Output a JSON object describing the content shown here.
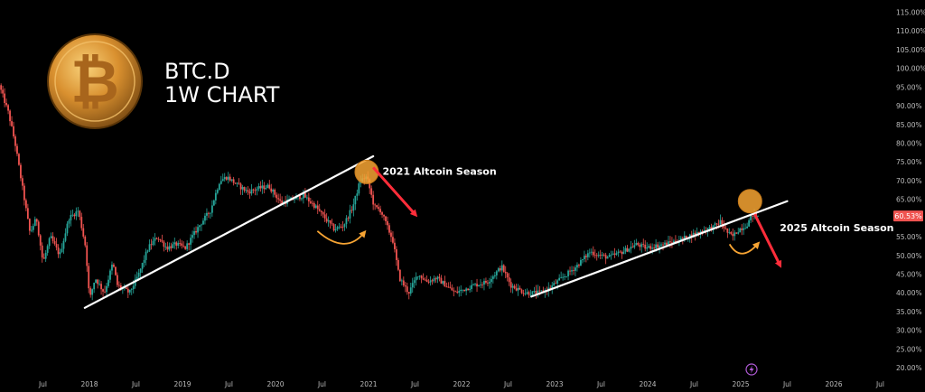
{
  "chart_data": {
    "type": "candlestick",
    "title_line1": "BTC.D",
    "title_line2": "1W CHART",
    "ylim": [
      20,
      115
    ],
    "y_ticks": [
      "115.00%",
      "110.00%",
      "105.00%",
      "100.00%",
      "95.00%",
      "90.00%",
      "85.00%",
      "80.00%",
      "75.00%",
      "70.00%",
      "65.00%",
      "60.00%",
      "55.00%",
      "50.00%",
      "45.00%",
      "40.00%",
      "35.00%",
      "30.00%",
      "25.00%",
      "20.00%"
    ],
    "x_ticks": [
      "Jul",
      "2018",
      "Jul",
      "2019",
      "Jul",
      "2020",
      "Jul",
      "2021",
      "Jul",
      "2022",
      "Jul",
      "2023",
      "Jul",
      "2024",
      "Jul",
      "2025",
      "Jul",
      "2026",
      "Jul"
    ],
    "x_tick_dates": [
      2017.5,
      2018,
      2018.5,
      2019,
      2019.5,
      2020,
      2020.5,
      2021,
      2021.5,
      2022,
      2022.5,
      2023,
      2023.5,
      2024,
      2024.5,
      2025,
      2025.5,
      2026,
      2026.5
    ],
    "current_value_label": "60.53%",
    "current_value": 60.53,
    "series_path": [
      [
        2017.05,
        95.5
      ],
      [
        2017.15,
        88
      ],
      [
        2017.22,
        80
      ],
      [
        2017.3,
        68
      ],
      [
        2017.38,
        56
      ],
      [
        2017.45,
        60
      ],
      [
        2017.52,
        48
      ],
      [
        2017.6,
        55
      ],
      [
        2017.7,
        50
      ],
      [
        2017.8,
        60
      ],
      [
        2017.9,
        62
      ],
      [
        2017.98,
        52
      ],
      [
        2018.02,
        38
      ],
      [
        2018.08,
        44
      ],
      [
        2018.18,
        40
      ],
      [
        2018.27,
        48
      ],
      [
        2018.32,
        42
      ],
      [
        2018.45,
        40
      ],
      [
        2018.55,
        45
      ],
      [
        2018.65,
        52
      ],
      [
        2018.75,
        55
      ],
      [
        2018.85,
        52
      ],
      [
        2018.95,
        53
      ],
      [
        2019.05,
        52
      ],
      [
        2019.2,
        58
      ],
      [
        2019.32,
        62
      ],
      [
        2019.42,
        70
      ],
      [
        2019.5,
        71
      ],
      [
        2019.6,
        69
      ],
      [
        2019.72,
        67
      ],
      [
        2019.85,
        68
      ],
      [
        2019.95,
        68.5
      ],
      [
        2020.08,
        64
      ],
      [
        2020.2,
        65
      ],
      [
        2020.32,
        66
      ],
      [
        2020.45,
        63
      ],
      [
        2020.55,
        60
      ],
      [
        2020.65,
        57
      ],
      [
        2020.75,
        58
      ],
      [
        2020.85,
        63
      ],
      [
        2020.93,
        70
      ],
      [
        2021.0,
        71
      ],
      [
        2021.08,
        63
      ],
      [
        2021.15,
        62
      ],
      [
        2021.28,
        54
      ],
      [
        2021.35,
        44
      ],
      [
        2021.45,
        40
      ],
      [
        2021.55,
        45
      ],
      [
        2021.65,
        43
      ],
      [
        2021.75,
        44
      ],
      [
        2021.85,
        42
      ],
      [
        2021.95,
        40
      ],
      [
        2022.05,
        41
      ],
      [
        2022.15,
        42
      ],
      [
        2022.3,
        43
      ],
      [
        2022.45,
        47
      ],
      [
        2022.55,
        42
      ],
      [
        2022.7,
        40
      ],
      [
        2022.85,
        40
      ],
      [
        2022.95,
        41
      ],
      [
        2023.1,
        44
      ],
      [
        2023.25,
        47
      ],
      [
        2023.4,
        51
      ],
      [
        2023.5,
        50
      ],
      [
        2023.6,
        49.5
      ],
      [
        2023.75,
        51
      ],
      [
        2023.9,
        53
      ],
      [
        2024.0,
        52
      ],
      [
        2024.1,
        52.5
      ],
      [
        2024.2,
        53
      ],
      [
        2024.35,
        54
      ],
      [
        2024.45,
        55
      ],
      [
        2024.55,
        56
      ],
      [
        2024.65,
        57
      ],
      [
        2024.72,
        57.5
      ],
      [
        2024.8,
        59
      ],
      [
        2024.88,
        56
      ],
      [
        2024.93,
        55
      ],
      [
        2025.0,
        57
      ],
      [
        2025.08,
        58
      ],
      [
        2025.15,
        61
      ],
      [
        2025.2,
        60.53
      ]
    ],
    "trendlines": [
      {
        "from": [
          2017.95,
          36.0
        ],
        "to": [
          2021.05,
          76.5
        ]
      },
      {
        "from": [
          2022.75,
          39.0
        ],
        "to": [
          2025.5,
          64.5
        ]
      }
    ],
    "annotations": [
      {
        "text": "2021 Altcoin Season",
        "at": [
          2021.15,
          71.5
        ]
      },
      {
        "text": "2025 Altcoin Season",
        "at": [
          2025.42,
          56.5
        ]
      }
    ],
    "highlight_circles": [
      [
        2020.98,
        72.3
      ],
      [
        2025.1,
        64.5
      ]
    ],
    "down_arrows": [
      {
        "from": [
          2021.05,
          73.5
        ],
        "to": [
          2021.5,
          61
        ]
      },
      {
        "from": [
          2025.15,
          61
        ],
        "to": [
          2025.42,
          47.5
        ]
      }
    ],
    "curved_arrows": [
      {
        "from": [
          2020.45,
          56.5
        ],
        "mid": [
          2020.75,
          50
        ],
        "to": [
          2020.95,
          56
        ]
      },
      {
        "from": [
          2024.88,
          53
        ],
        "mid": [
          2025.0,
          48
        ],
        "to": [
          2025.18,
          53
        ]
      }
    ],
    "colors": {
      "background": "#000000",
      "bull": "#26a69a",
      "bear": "#ef5350",
      "trendline": "#ffffff",
      "circle": "#f7a433",
      "arrow_down": "#ff2d3a",
      "arrow_curve": "#f7a433",
      "price_label": "#ef5350"
    },
    "logo": "bitcoin-coin-icon",
    "lightning_icon": "lightning-icon"
  }
}
